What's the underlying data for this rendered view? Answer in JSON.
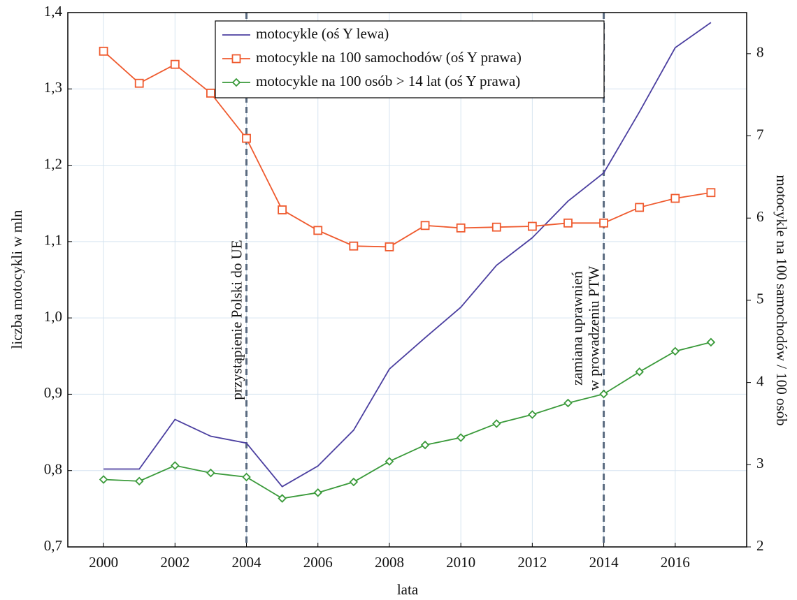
{
  "chart_data": {
    "type": "line",
    "xlabel": "lata",
    "ylabel": "liczba motocykli w mln",
    "y2label": "motocykle na 100 samochodów / 100 osób",
    "x": [
      2000,
      2001,
      2002,
      2003,
      2004,
      2005,
      2006,
      2007,
      2008,
      2009,
      2010,
      2011,
      2012,
      2013,
      2014,
      2015,
      2016,
      2017
    ],
    "xlim": [
      1999,
      2018
    ],
    "xticks": [
      2000,
      2002,
      2004,
      2006,
      2008,
      2010,
      2012,
      2014,
      2016
    ],
    "ylim": [
      0.7,
      1.4
    ],
    "yticks": [
      {
        "value": 0.7,
        "label": "0,7"
      },
      {
        "value": 0.8,
        "label": "0,8"
      },
      {
        "value": 0.9,
        "label": "0,9"
      },
      {
        "value": 1.0,
        "label": "1,0"
      },
      {
        "value": 1.1,
        "label": "1,1"
      },
      {
        "value": 1.2,
        "label": "1,2"
      },
      {
        "value": 1.3,
        "label": "1,3"
      },
      {
        "value": 1.4,
        "label": "1,4"
      }
    ],
    "y2lim": [
      2,
      8.5
    ],
    "y2ticks": [
      2,
      3,
      4,
      5,
      6,
      7,
      8
    ],
    "grid": true,
    "legend": "upper center",
    "series": [
      {
        "name": "motocykle (oś Y lewa)",
        "color": "#4b3fa0",
        "marker": "none",
        "values": [
          0.802,
          0.802,
          0.867,
          0.845,
          0.836,
          0.779,
          0.806,
          0.853,
          0.933,
          0.974,
          1.014,
          1.069,
          1.105,
          1.153,
          1.19,
          1.27,
          1.354,
          1.387
        ]
      },
      {
        "name": "motocykle na 100 samochodów (oś Y prawa)",
        "color": "#ef5a2e",
        "marker": "square",
        "axis": "y2",
        "values": [
          8.03,
          7.64,
          7.87,
          7.52,
          6.97,
          6.1,
          5.85,
          5.66,
          5.65,
          5.91,
          5.88,
          5.89,
          5.9,
          5.94,
          5.94,
          6.13,
          6.24,
          6.31
        ]
      },
      {
        "name": "motocykle na 100 osób > 14 lat  (oś Y prawa)",
        "color": "#3a9a3a",
        "marker": "diamond",
        "axis": "y2",
        "values": [
          2.82,
          2.8,
          2.99,
          2.9,
          2.85,
          2.59,
          2.66,
          2.79,
          3.04,
          3.24,
          3.33,
          3.5,
          3.61,
          3.75,
          3.86,
          4.13,
          4.38,
          4.49
        ]
      }
    ],
    "annotations": [
      {
        "x": 2004,
        "lines": [
          "przystąpienie Polski do UE"
        ]
      },
      {
        "x": 2014,
        "lines": [
          "zamiana uprawnień",
          "w prowadzeniu PTW"
        ]
      }
    ]
  }
}
